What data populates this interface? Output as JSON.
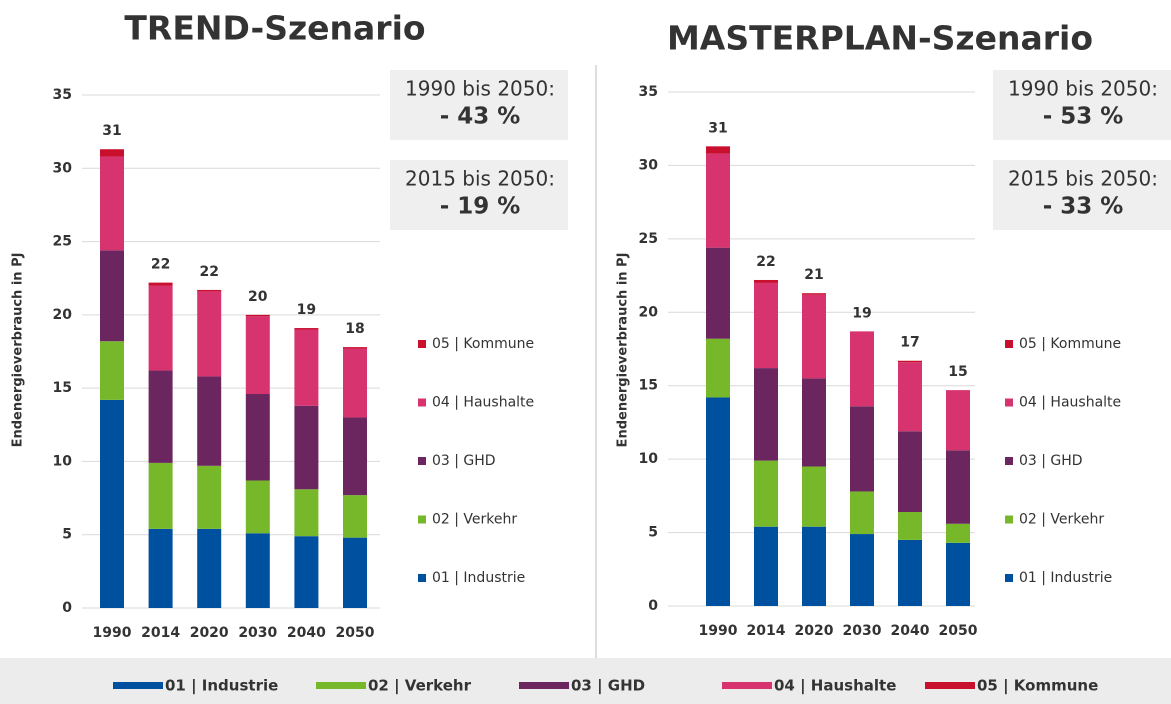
{
  "chart_data": [
    {
      "type": "bar",
      "stacked": true,
      "title": "TREND-Szenario",
      "y_label": "Endenergieverbrauch in PJ",
      "categories": [
        "1990",
        "2014",
        "2020",
        "2030",
        "2040",
        "2050"
      ],
      "series": [
        {
          "name": "01 | Industrie",
          "color": "#0050a0",
          "values": [
            14.2,
            5.4,
            5.4,
            5.1,
            4.9,
            4.8
          ]
        },
        {
          "name": "02 | Verkehr",
          "color": "#76b82a",
          "values": [
            4.0,
            4.5,
            4.3,
            3.6,
            3.2,
            2.9
          ]
        },
        {
          "name": "03 | GHD",
          "color": "#6b2660",
          "values": [
            6.2,
            6.3,
            6.1,
            5.9,
            5.7,
            5.3
          ]
        },
        {
          "name": "04 | Haushalte",
          "color": "#d6336f",
          "values": [
            6.4,
            5.8,
            5.8,
            5.3,
            5.2,
            4.7
          ]
        },
        {
          "name": "05 | Kommune",
          "color": "#c8102e",
          "values": [
            0.5,
            0.2,
            0.1,
            0.1,
            0.1,
            0.1
          ]
        }
      ],
      "totals": [
        31,
        22,
        22,
        20,
        19,
        18
      ],
      "annotations": [
        {
          "text": "1990 bis 2050:",
          "value": "- 43 %"
        },
        {
          "text": "2015 bis 2050:",
          "value": "- 19 %"
        }
      ],
      "ylim": [
        0,
        35
      ],
      "yticks": [
        0,
        5,
        10,
        15,
        20,
        25,
        30,
        35
      ],
      "grid": true
    },
    {
      "type": "bar",
      "stacked": true,
      "title": "MASTERPLAN-Szenario",
      "y_label": "Endenergieverbrauch in PJ",
      "categories": [
        "1990",
        "2014",
        "2020",
        "2030",
        "2040",
        "2050"
      ],
      "series": [
        {
          "name": "01 | Industrie",
          "color": "#0050a0",
          "values": [
            14.2,
            5.4,
            5.4,
            4.9,
            4.5,
            4.3
          ]
        },
        {
          "name": "02 | Verkehr",
          "color": "#76b82a",
          "values": [
            4.0,
            4.5,
            4.1,
            2.9,
            1.9,
            1.3
          ]
        },
        {
          "name": "03 | GHD",
          "color": "#6b2660",
          "values": [
            6.2,
            6.3,
            6.0,
            5.8,
            5.5,
            5.0
          ]
        },
        {
          "name": "04 | Haushalte",
          "color": "#d6336f",
          "values": [
            6.4,
            5.8,
            5.7,
            5.1,
            4.7,
            4.1
          ]
        },
        {
          "name": "05 | Kommune",
          "color": "#c8102e",
          "values": [
            0.5,
            0.2,
            0.1,
            0.0,
            0.1,
            0.0
          ]
        }
      ],
      "totals": [
        31,
        22,
        21,
        19,
        17,
        15
      ],
      "annotations": [
        {
          "text": "1990 bis 2050:",
          "value": "- 53 %"
        },
        {
          "text": "2015 bis 2050:",
          "value": "- 33 %"
        }
      ],
      "ylim": [
        0,
        35
      ],
      "yticks": [
        0,
        5,
        10,
        15,
        20,
        25,
        30,
        35
      ],
      "grid": true
    }
  ]
}
